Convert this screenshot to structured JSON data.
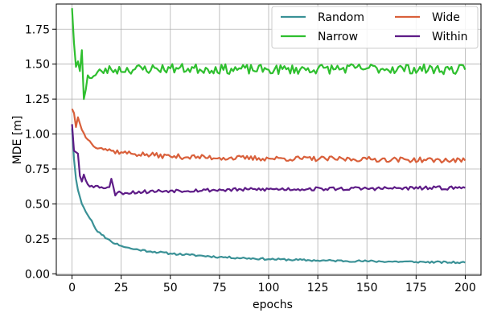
{
  "chart_data": {
    "type": "line",
    "xlabel": "epochs",
    "ylabel": "MDE [m]",
    "xlim": [
      -8,
      208
    ],
    "ylim": [
      -0.01,
      1.93
    ],
    "xticks": [
      0,
      25,
      50,
      75,
      100,
      125,
      150,
      175,
      200
    ],
    "yticks": [
      0.0,
      0.25,
      0.5,
      0.75,
      1.0,
      1.25,
      1.5,
      1.75
    ],
    "ytick_labels": [
      "0.00",
      "0.25",
      "0.50",
      "0.75",
      "1.00",
      "1.25",
      "1.50",
      "1.75"
    ],
    "grid": true,
    "legend_position": "top-right",
    "legend_columns": 2,
    "x_range": [
      0,
      200
    ],
    "series": [
      {
        "name": "Random",
        "color": "#3a9196",
        "anchors": [
          [
            0,
            1.04
          ],
          [
            1,
            0.82
          ],
          [
            2,
            0.68
          ],
          [
            3,
            0.6
          ],
          [
            5,
            0.5
          ],
          [
            8,
            0.42
          ],
          [
            10,
            0.38
          ],
          [
            12,
            0.32
          ],
          [
            15,
            0.28
          ],
          [
            18,
            0.25
          ],
          [
            20,
            0.23
          ],
          [
            25,
            0.2
          ],
          [
            30,
            0.18
          ],
          [
            40,
            0.16
          ],
          [
            50,
            0.145
          ],
          [
            60,
            0.135
          ],
          [
            75,
            0.12
          ],
          [
            100,
            0.105
          ],
          [
            125,
            0.095
          ],
          [
            150,
            0.09
          ],
          [
            175,
            0.085
          ],
          [
            200,
            0.08
          ]
        ],
        "noise": 0.007,
        "seed": 11
      },
      {
        "name": "Narrow",
        "color": "#2fbf2f",
        "anchors": [
          [
            0,
            1.9
          ],
          [
            1,
            1.65
          ],
          [
            2,
            1.48
          ],
          [
            3,
            1.52
          ],
          [
            4,
            1.45
          ],
          [
            5,
            1.6
          ],
          [
            6,
            1.25
          ],
          [
            8,
            1.42
          ],
          [
            10,
            1.4
          ],
          [
            15,
            1.45
          ],
          [
            20,
            1.46
          ],
          [
            50,
            1.47
          ],
          [
            100,
            1.46
          ],
          [
            150,
            1.47
          ],
          [
            200,
            1.46
          ]
        ],
        "noise": 0.035,
        "seed": 23
      },
      {
        "name": "Wide",
        "color": "#d9603b",
        "anchors": [
          [
            0,
            1.18
          ],
          [
            1,
            1.15
          ],
          [
            2,
            1.05
          ],
          [
            3,
            1.12
          ],
          [
            5,
            1.03
          ],
          [
            8,
            0.96
          ],
          [
            10,
            0.93
          ],
          [
            15,
            0.9
          ],
          [
            20,
            0.88
          ],
          [
            25,
            0.87
          ],
          [
            30,
            0.86
          ],
          [
            40,
            0.85
          ],
          [
            50,
            0.84
          ],
          [
            75,
            0.83
          ],
          [
            100,
            0.825
          ],
          [
            150,
            0.82
          ],
          [
            200,
            0.81
          ]
        ],
        "noise": 0.018,
        "seed": 37
      },
      {
        "name": "Within",
        "color": "#5e1c87",
        "anchors": [
          [
            0,
            1.07
          ],
          [
            1,
            0.88
          ],
          [
            3,
            0.86
          ],
          [
            4,
            0.7
          ],
          [
            5,
            0.66
          ],
          [
            6,
            0.71
          ],
          [
            8,
            0.64
          ],
          [
            10,
            0.63
          ],
          [
            15,
            0.62
          ],
          [
            19,
            0.62
          ],
          [
            20,
            0.68
          ],
          [
            22,
            0.56
          ],
          [
            23,
            0.58
          ],
          [
            25,
            0.58
          ],
          [
            50,
            0.595
          ],
          [
            100,
            0.605
          ],
          [
            150,
            0.61
          ],
          [
            200,
            0.615
          ]
        ],
        "noise": 0.013,
        "seed": 53
      }
    ]
  }
}
